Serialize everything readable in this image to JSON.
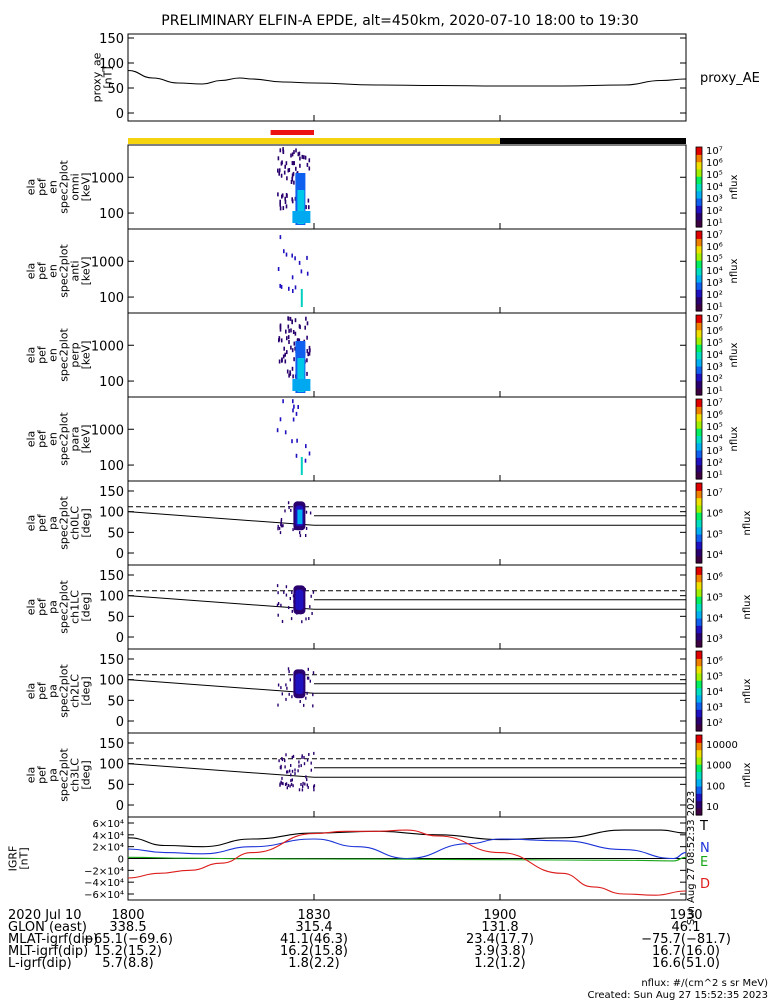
{
  "title": "PRELIMINARY ELFIN-A EPDE, alt=450km, 2020-07-10 18:00 to 19:30",
  "panels": [
    {
      "ylabel": [
        "proxy_ae",
        "[nT]"
      ],
      "ticks": [
        "150",
        "100",
        "50",
        "0"
      ],
      "right_label": "proxy_AE"
    },
    {
      "ylabel": [
        "ela",
        "pef",
        "en",
        "spec2plot",
        "omni",
        "[keV]"
      ],
      "ticks": [
        "1000",
        "100"
      ],
      "cb_label": "nflux",
      "cb_ticks": [
        "10⁷",
        "10⁶",
        "10⁵",
        "10⁴",
        "10³",
        "10²",
        "10¹"
      ]
    },
    {
      "ylabel": [
        "ela",
        "pef",
        "en",
        "spec2plot",
        "anti",
        "[keV]"
      ],
      "ticks": [
        "1000",
        "100"
      ],
      "cb_label": "nflux",
      "cb_ticks": [
        "10⁷",
        "10⁶",
        "10⁵",
        "10⁴",
        "10³",
        "10²",
        "10¹"
      ]
    },
    {
      "ylabel": [
        "ela",
        "pef",
        "en",
        "spec2plot",
        "perp",
        "[keV]"
      ],
      "ticks": [
        "1000",
        "100"
      ],
      "cb_label": "nflux",
      "cb_ticks": [
        "10⁷",
        "10⁶",
        "10⁵",
        "10⁴",
        "10³",
        "10²",
        "10¹"
      ]
    },
    {
      "ylabel": [
        "ela",
        "pef",
        "en",
        "spec2plot",
        "para",
        "[keV]"
      ],
      "ticks": [
        "1000",
        "100"
      ],
      "cb_label": "nflux",
      "cb_ticks": [
        "10⁷",
        "10⁶",
        "10⁵",
        "10⁴",
        "10³",
        "10²",
        "10¹"
      ]
    },
    {
      "ylabel": [
        "ela",
        "pef",
        "pa",
        "spec2plot",
        "ch0LC",
        "[deg]"
      ],
      "ticks": [
        "150",
        "100",
        "50",
        "0"
      ],
      "cb_label": "nflux",
      "cb_ticks": [
        "10⁷",
        "10⁶",
        "10⁵",
        "10⁴"
      ]
    },
    {
      "ylabel": [
        "ela",
        "pef",
        "pa",
        "spec2plot",
        "ch1LC",
        "[deg]"
      ],
      "ticks": [
        "150",
        "100",
        "50",
        "0"
      ],
      "cb_label": "nflux",
      "cb_ticks": [
        "10⁶",
        "10⁵",
        "10⁴",
        "10³"
      ]
    },
    {
      "ylabel": [
        "ela",
        "pef",
        "pa",
        "spec2plot",
        "ch2LC",
        "[deg]"
      ],
      "ticks": [
        "150",
        "100",
        "50",
        "0"
      ],
      "cb_label": "nflux",
      "cb_ticks": [
        "10⁶",
        "10⁵",
        "10⁴",
        "10³",
        "10²"
      ]
    },
    {
      "ylabel": [
        "ela",
        "pef",
        "pa",
        "spec2plot",
        "ch3LC",
        "[deg]"
      ],
      "ticks": [
        "150",
        "100",
        "50",
        "0"
      ],
      "cb_label": "nflux",
      "cb_ticks": [
        "10000",
        "1000",
        "100",
        "10"
      ]
    },
    {
      "ylabel": [
        "IGRF",
        "[nT]"
      ],
      "ticks": [
        "6×10⁴",
        "4×10⁴",
        "2×10⁴",
        "0",
        "−2×10⁴",
        "−4×10⁴",
        "−6×10⁴"
      ],
      "legend": [
        "T",
        "N",
        "E",
        "D"
      ]
    }
  ],
  "colors": {
    "status_yellow": "#f5d30f",
    "status_black": "#000000",
    "status_red": "#ee1111",
    "T": "#000000",
    "N": "#1b33d8",
    "E": "#1aa61a",
    "D": "#dd1c1c"
  },
  "footer": {
    "rows": [
      {
        "label": "2020 Jul 10",
        "values": [
          "1800",
          "1830",
          "1900",
          "1930"
        ]
      },
      {
        "label": "GLON (east)",
        "values": [
          "338.5",
          "315.4",
          "131.8",
          "46.1"
        ]
      },
      {
        "label": "MLAT-igrf(dip)",
        "values": [
          "−65.1(−69.6)",
          "41.1(46.3)",
          "23.4(17.7)",
          "−75.7(−81.7)"
        ]
      },
      {
        "label": "MLT-igrf(dip)",
        "values": [
          "15.2(15.2)",
          "16.2(15.8)",
          "3.9(3.8)",
          "16.7(16.0)"
        ]
      },
      {
        "label": "L-igrf(dip)",
        "values": [
          "5.7(8.8)",
          "1.8(2.2)",
          "1.2(1.2)",
          "16.6(51.0)"
        ]
      }
    ],
    "units_note": "nflux: #/(cm^2 s sr MeV)",
    "created": "Created: Sun Aug 27 15:52:35 2023",
    "side_stamp": "Sun Aug 27 08:52:33 2023"
  },
  "chart_data": {
    "type": "line",
    "x_range_hhmm": [
      "18:00",
      "19:30"
    ],
    "series": [
      {
        "name": "proxy_AE",
        "unit": "nT",
        "x": [
          "18:00",
          "18:04",
          "18:08",
          "18:12",
          "18:15",
          "18:18",
          "18:20",
          "18:25",
          "18:30",
          "18:40",
          "18:50",
          "19:00",
          "19:10",
          "19:20",
          "19:26",
          "19:30"
        ],
        "values": [
          85,
          70,
          60,
          58,
          65,
          70,
          68,
          62,
          60,
          56,
          55,
          54,
          54,
          56,
          65,
          68
        ]
      },
      {
        "name": "T",
        "unit": "nT",
        "x": [
          "18:00",
          "18:06",
          "18:12",
          "18:20",
          "18:30",
          "18:40",
          "18:50",
          "19:00",
          "19:10",
          "19:20",
          "19:26",
          "19:30"
        ],
        "values": [
          35000,
          22000,
          20000,
          33000,
          43000,
          46000,
          40000,
          32000,
          35000,
          48000,
          48000,
          43000
        ]
      },
      {
        "name": "N",
        "unit": "nT",
        "x": [
          "18:00",
          "18:06",
          "18:12",
          "18:20",
          "18:30",
          "18:37",
          "18:45",
          "18:55",
          "19:00",
          "19:10",
          "19:20",
          "19:28",
          "19:30"
        ],
        "values": [
          16000,
          10000,
          8000,
          20000,
          33000,
          20000,
          0,
          25000,
          33000,
          30000,
          15000,
          0,
          10000
        ]
      },
      {
        "name": "E",
        "unit": "nT",
        "x": [
          "18:00",
          "18:10",
          "18:20",
          "18:30",
          "18:40",
          "18:50",
          "19:00",
          "19:10",
          "19:20",
          "19:28",
          "19:30"
        ],
        "values": [
          2000,
          500,
          -500,
          -800,
          -1000,
          -1500,
          -2000,
          -2500,
          -3000,
          -4000,
          2000
        ]
      },
      {
        "name": "D",
        "unit": "nT",
        "x": [
          "18:00",
          "18:05",
          "18:10",
          "18:15",
          "18:20",
          "18:30",
          "18:35",
          "18:40",
          "18:45",
          "18:50",
          "19:00",
          "19:10",
          "19:15",
          "19:20",
          "19:25",
          "19:30"
        ],
        "values": [
          -33000,
          -25000,
          -20000,
          -8000,
          10000,
          42000,
          46000,
          46000,
          48000,
          38000,
          10000,
          -25000,
          -48000,
          -60000,
          -62000,
          -55000
        ]
      }
    ],
    "status_bar": {
      "red": [
        "18:23",
        "18:30"
      ],
      "yellow": [
        "18:00",
        "19:00"
      ],
      "black": [
        "19:00",
        "19:30"
      ]
    },
    "pa_lines_deg": {
      "dashed": 112,
      "solid_upper": 90,
      "loss_cone": {
        "start": 100,
        "end": 67
      }
    },
    "spectrogram_time": [
      "18:24",
      "18:30"
    ]
  }
}
